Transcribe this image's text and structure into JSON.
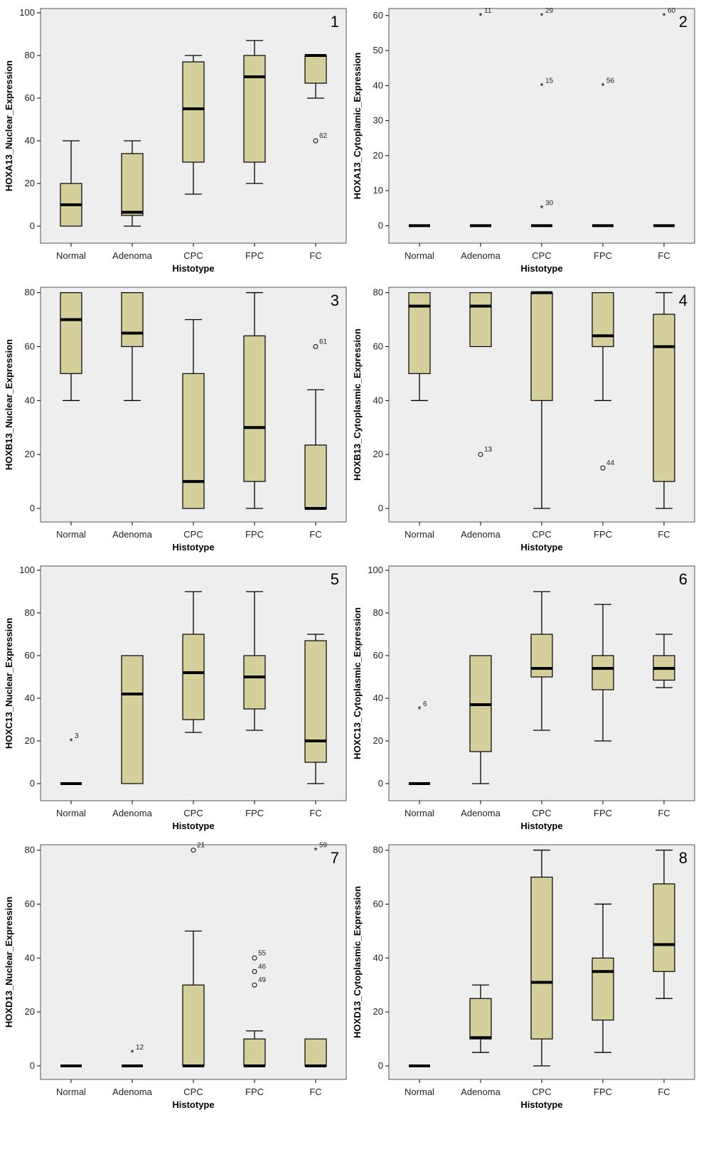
{
  "figure": {
    "panel_order": [
      "1",
      "2",
      "3",
      "4",
      "5",
      "6",
      "7",
      "8"
    ]
  },
  "chart_data": [
    {
      "type": "boxplot",
      "panel": "1",
      "xlabel": "Histotype",
      "ylabel": "HOXA13_Nuclear_Expression",
      "ylim": [
        -8,
        102
      ],
      "yticks": [
        0,
        20,
        40,
        60,
        80,
        100
      ],
      "categories": [
        "Normal",
        "Adenoma",
        "CPC",
        "FPC",
        "FC"
      ],
      "boxes": [
        {
          "min": 0,
          "q1": 0,
          "median": 10,
          "q3": 20,
          "max": 40,
          "outliers": []
        },
        {
          "min": 0,
          "q1": 5,
          "median": 6.5,
          "q3": 34,
          "max": 40,
          "outliers": []
        },
        {
          "min": 15,
          "q1": 30,
          "median": 55,
          "q3": 77,
          "max": 80,
          "outliers": []
        },
        {
          "min": 20,
          "q1": 30,
          "median": 70,
          "q3": 80,
          "max": 87,
          "outliers": []
        },
        {
          "min": 60,
          "q1": 67,
          "median": 80,
          "q3": 80,
          "max": 80,
          "outliers": [
            {
              "value": 40,
              "label": "62",
              "kind": "circle"
            }
          ]
        }
      ]
    },
    {
      "type": "boxplot",
      "panel": "2",
      "xlabel": "Histotype",
      "ylabel": "HOXA13_Cytoplamic_Expression",
      "ylim": [
        -5,
        62
      ],
      "yticks": [
        0,
        10,
        20,
        30,
        40,
        50,
        60
      ],
      "categories": [
        "Normal",
        "Adenoma",
        "CPC",
        "FPC",
        "FC"
      ],
      "boxes": [
        {
          "min": 0,
          "q1": 0,
          "median": 0,
          "q3": 0,
          "max": 0,
          "outliers": []
        },
        {
          "min": 0,
          "q1": 0,
          "median": 0,
          "q3": 0,
          "max": 0,
          "outliers": [
            {
              "value": 60,
              "label": "11",
              "kind": "star"
            }
          ]
        },
        {
          "min": 0,
          "q1": 0,
          "median": 0,
          "q3": 0,
          "max": 0,
          "outliers": [
            {
              "value": 60,
              "label": "29",
              "kind": "star"
            },
            {
              "value": 40,
              "label": "15",
              "kind": "star"
            },
            {
              "value": 5,
              "label": "30",
              "kind": "star"
            }
          ]
        },
        {
          "min": 0,
          "q1": 0,
          "median": 0,
          "q3": 0,
          "max": 0,
          "outliers": [
            {
              "value": 40,
              "label": "56",
              "kind": "star"
            }
          ]
        },
        {
          "min": 0,
          "q1": 0,
          "median": 0,
          "q3": 0,
          "max": 0,
          "outliers": [
            {
              "value": 60,
              "label": "60",
              "kind": "star"
            }
          ]
        }
      ]
    },
    {
      "type": "boxplot",
      "panel": "3",
      "xlabel": "Histotype",
      "ylabel": "HOXB13_Nuclear_Expression",
      "ylim": [
        -5,
        82
      ],
      "yticks": [
        0,
        20,
        40,
        60,
        80
      ],
      "categories": [
        "Normal",
        "Adenoma",
        "CPC",
        "FPC",
        "FC"
      ],
      "boxes": [
        {
          "min": 40,
          "q1": 50,
          "median": 70,
          "q3": 80,
          "max": 80,
          "outliers": []
        },
        {
          "min": 40,
          "q1": 60,
          "median": 65,
          "q3": 80,
          "max": 80,
          "outliers": []
        },
        {
          "min": 0,
          "q1": 0,
          "median": 10,
          "q3": 50,
          "max": 70,
          "outliers": []
        },
        {
          "min": 0,
          "q1": 10,
          "median": 30,
          "q3": 64,
          "max": 80,
          "outliers": []
        },
        {
          "min": 0,
          "q1": 0,
          "median": 0,
          "q3": 23.5,
          "max": 44,
          "outliers": [
            {
              "value": 60,
              "label": "61",
              "kind": "circle"
            }
          ]
        }
      ]
    },
    {
      "type": "boxplot",
      "panel": "4",
      "xlabel": "Histotype",
      "ylabel": "HOXB13_Cytoplasmic_Expression",
      "ylim": [
        -5,
        82
      ],
      "yticks": [
        0,
        20,
        40,
        60,
        80
      ],
      "categories": [
        "Normal",
        "Adenoma",
        "CPC",
        "FPC",
        "FC"
      ],
      "boxes": [
        {
          "min": 40,
          "q1": 50,
          "median": 75,
          "q3": 80,
          "max": 80,
          "outliers": []
        },
        {
          "min": 60,
          "q1": 60,
          "median": 75,
          "q3": 80,
          "max": 80,
          "outliers": [
            {
              "value": 20,
              "label": "13",
              "kind": "circle"
            }
          ]
        },
        {
          "min": 0,
          "q1": 40,
          "median": 80,
          "q3": 80,
          "max": 80,
          "outliers": []
        },
        {
          "min": 40,
          "q1": 60,
          "median": 64,
          "q3": 80,
          "max": 80,
          "outliers": [
            {
              "value": 15,
              "label": "44",
              "kind": "circle"
            }
          ]
        },
        {
          "min": 0,
          "q1": 10,
          "median": 60,
          "q3": 72,
          "max": 80,
          "outliers": []
        }
      ]
    },
    {
      "type": "boxplot",
      "panel": "5",
      "xlabel": "Histotype",
      "ylabel": "HOXC13_Nuclear_Expression",
      "ylim": [
        -8,
        102
      ],
      "yticks": [
        0,
        20,
        40,
        60,
        80,
        100
      ],
      "categories": [
        "Normal",
        "Adenoma",
        "CPC",
        "FPC",
        "FC"
      ],
      "boxes": [
        {
          "min": 0,
          "q1": 0,
          "median": 0,
          "q3": 0,
          "max": 0,
          "outliers": [
            {
              "value": 20,
              "label": "3",
              "kind": "star"
            }
          ]
        },
        {
          "min": 0,
          "q1": 0,
          "median": 42,
          "q3": 60,
          "max": 60,
          "outliers": []
        },
        {
          "min": 24,
          "q1": 30,
          "median": 52,
          "q3": 70,
          "max": 90,
          "outliers": []
        },
        {
          "min": 25,
          "q1": 35,
          "median": 50,
          "q3": 60,
          "max": 90,
          "outliers": []
        },
        {
          "min": 0,
          "q1": 10,
          "median": 20,
          "q3": 67,
          "max": 70,
          "outliers": []
        }
      ]
    },
    {
      "type": "boxplot",
      "panel": "6",
      "xlabel": "Histotype",
      "ylabel": "HOXC13_Cytoplasmic_Expression",
      "ylim": [
        -8,
        102
      ],
      "yticks": [
        0,
        20,
        40,
        60,
        80,
        100
      ],
      "categories": [
        "Normal",
        "Adenoma",
        "CPC",
        "FPC",
        "FC"
      ],
      "boxes": [
        {
          "min": 0,
          "q1": 0,
          "median": 0,
          "q3": 0,
          "max": 0,
          "outliers": [
            {
              "value": 35,
              "label": "6",
              "kind": "star"
            }
          ]
        },
        {
          "min": 0,
          "q1": 15,
          "median": 37,
          "q3": 60,
          "max": 60,
          "outliers": []
        },
        {
          "min": 25,
          "q1": 50,
          "median": 54,
          "q3": 70,
          "max": 90,
          "outliers": []
        },
        {
          "min": 20,
          "q1": 44,
          "median": 54,
          "q3": 60,
          "max": 84,
          "outliers": []
        },
        {
          "min": 45,
          "q1": 48.5,
          "median": 54,
          "q3": 60,
          "max": 70,
          "outliers": []
        }
      ]
    },
    {
      "type": "boxplot",
      "panel": "7",
      "xlabel": "Histotype",
      "ylabel": "HOXD13_Nuclear_Expression",
      "ylim": [
        -5,
        82
      ],
      "yticks": [
        0,
        20,
        40,
        60,
        80
      ],
      "categories": [
        "Normal",
        "Adenoma",
        "CPC",
        "FPC",
        "FC"
      ],
      "boxes": [
        {
          "min": 0,
          "q1": 0,
          "median": 0,
          "q3": 0,
          "max": 0,
          "outliers": []
        },
        {
          "min": 0,
          "q1": 0,
          "median": 0,
          "q3": 0,
          "max": 0,
          "outliers": [
            {
              "value": 5,
              "label": "12",
              "kind": "star"
            }
          ]
        },
        {
          "min": 0,
          "q1": 0,
          "median": 0,
          "q3": 30,
          "max": 50,
          "outliers": [
            {
              "value": 80,
              "label": "21",
              "kind": "circle"
            }
          ]
        },
        {
          "min": 0,
          "q1": 0,
          "median": 0,
          "q3": 10,
          "max": 13,
          "outliers": [
            {
              "value": 40,
              "label": "55",
              "kind": "circle"
            },
            {
              "value": 35,
              "label": "46",
              "kind": "circle"
            },
            {
              "value": 30,
              "label": "49",
              "kind": "circle"
            }
          ]
        },
        {
          "min": 0,
          "q1": 0,
          "median": 0,
          "q3": 10,
          "max": 10,
          "outliers": [
            {
              "value": 80,
              "label": "59",
              "kind": "star"
            }
          ]
        }
      ]
    },
    {
      "type": "boxplot",
      "panel": "8",
      "xlabel": "Histotype",
      "ylabel": "HOXD13_Cytoplasmic_Expression",
      "ylim": [
        -5,
        82
      ],
      "yticks": [
        0,
        20,
        40,
        60,
        80
      ],
      "categories": [
        "Normal",
        "Adenoma",
        "CPC",
        "FPC",
        "FC"
      ],
      "boxes": [
        {
          "min": 0,
          "q1": 0,
          "median": 0,
          "q3": 0,
          "max": 0,
          "outliers": []
        },
        {
          "min": 5,
          "q1": 10,
          "median": 10.5,
          "q3": 25,
          "max": 30,
          "outliers": []
        },
        {
          "min": 0,
          "q1": 10,
          "median": 31,
          "q3": 70,
          "max": 80,
          "outliers": []
        },
        {
          "min": 5,
          "q1": 17,
          "median": 35,
          "q3": 40,
          "max": 60,
          "outliers": []
        },
        {
          "min": 25,
          "q1": 35,
          "median": 45,
          "q3": 67.5,
          "max": 80,
          "outliers": []
        }
      ]
    }
  ],
  "colors": {
    "box_fill": "#d4cf9b",
    "plot_background": "#eeeeee",
    "stroke": "#000000"
  }
}
